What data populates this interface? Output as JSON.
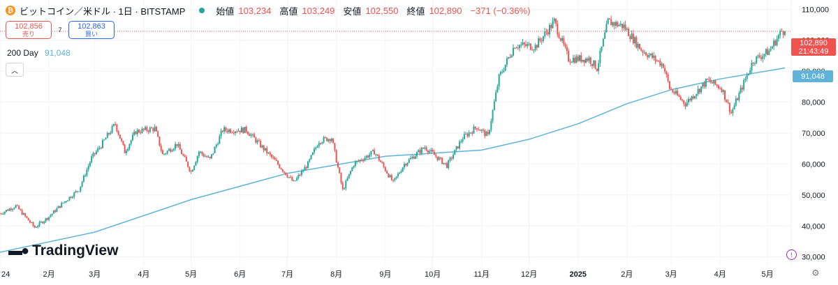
{
  "header": {
    "symbol": "ビットコイン／米ドル · 1日 · BITSTAMP",
    "coin_icon": "bitcoin-icon",
    "open_label": "始値",
    "open": "103,234",
    "high_label": "高値",
    "high": "103,249",
    "low_label": "安値",
    "low": "102,550",
    "close_label": "終値",
    "close": "102,890",
    "change": "−371 (−0.36%)"
  },
  "trade": {
    "sell_price": "102,856",
    "sell_label": "売り",
    "spread": "7",
    "buy_price": "102,863",
    "buy_label": "買い"
  },
  "ma_legend": {
    "label": "200 Day",
    "value": "91,048"
  },
  "branding": {
    "logo_text": "TradingView"
  },
  "price_tag": {
    "price": "102,890",
    "countdown": "21:43:49"
  },
  "ma_tag": {
    "value": "91,048"
  },
  "colors": {
    "up": "#26a69a",
    "down": "#ef5350",
    "ma": "#5fb3d9",
    "grid": "#f0f3fa"
  },
  "chart_data": {
    "type": "candlestick",
    "x_tick_labels": [
      "24",
      "2月",
      "3月",
      "4月",
      "5月",
      "6月",
      "7月",
      "8月",
      "9月",
      "10月",
      "11月",
      "12月",
      "2025",
      "2月",
      "3月",
      "4月",
      "5月"
    ],
    "y_ticks": [
      30000,
      40000,
      50000,
      60000,
      70000,
      80000,
      90000,
      100000,
      110000
    ],
    "y_tick_labels": [
      "30,000",
      "40,000",
      "50,000",
      "60,000",
      "70,000",
      "80,000",
      "90,000",
      "100,000",
      "110,000"
    ],
    "ylim": [
      27000,
      113000
    ],
    "last_price": 102890,
    "ma_last": 91048,
    "price_path": [
      [
        "2024-01-01",
        44000
      ],
      [
        "2024-01-11",
        46500
      ],
      [
        "2024-01-23",
        39500
      ],
      [
        "2024-02-01",
        43000
      ],
      [
        "2024-02-10",
        47500
      ],
      [
        "2024-02-20",
        51800
      ],
      [
        "2024-02-28",
        62000
      ],
      [
        "2024-03-05",
        66000
      ],
      [
        "2024-03-14",
        73000
      ],
      [
        "2024-03-20",
        64000
      ],
      [
        "2024-03-27",
        70500
      ],
      [
        "2024-04-08",
        71500
      ],
      [
        "2024-04-13",
        63000
      ],
      [
        "2024-04-22",
        66500
      ],
      [
        "2024-05-01",
        57500
      ],
      [
        "2024-05-06",
        64000
      ],
      [
        "2024-05-13",
        61500
      ],
      [
        "2024-05-21",
        71000
      ],
      [
        "2024-06-05",
        71000
      ],
      [
        "2024-06-14",
        66000
      ],
      [
        "2024-06-24",
        60500
      ],
      [
        "2024-07-05",
        54000
      ],
      [
        "2024-07-14",
        60000
      ],
      [
        "2024-07-21",
        67500
      ],
      [
        "2024-07-29",
        68500
      ],
      [
        "2024-08-05",
        51500
      ],
      [
        "2024-08-12",
        60000
      ],
      [
        "2024-08-25",
        64000
      ],
      [
        "2024-09-06",
        54000
      ],
      [
        "2024-09-13",
        60000
      ],
      [
        "2024-09-26",
        65500
      ],
      [
        "2024-10-10",
        59500
      ],
      [
        "2024-10-20",
        68500
      ],
      [
        "2024-10-29",
        72000
      ],
      [
        "2024-11-05",
        69000
      ],
      [
        "2024-11-12",
        88000
      ],
      [
        "2024-11-22",
        98500
      ],
      [
        "2024-12-05",
        98000
      ],
      [
        "2024-12-17",
        106000
      ],
      [
        "2024-12-26",
        94000
      ],
      [
        "2025-01-08",
        94000
      ],
      [
        "2025-01-13",
        91000
      ],
      [
        "2025-01-20",
        106000
      ],
      [
        "2025-01-30",
        104500
      ],
      [
        "2025-02-10",
        97000
      ],
      [
        "2025-02-24",
        92000
      ],
      [
        "2025-02-28",
        84500
      ],
      [
        "2025-03-10",
        79500
      ],
      [
        "2025-03-24",
        87000
      ],
      [
        "2025-04-02",
        84500
      ],
      [
        "2025-04-08",
        76500
      ],
      [
        "2025-04-22",
        93500
      ],
      [
        "2025-05-02",
        96500
      ],
      [
        "2025-05-10",
        103000
      ],
      [
        "2025-05-12",
        102890
      ]
    ],
    "ma200_path": [
      [
        "2024-01-01",
        31500
      ],
      [
        "2024-03-01",
        38000
      ],
      [
        "2024-05-01",
        48500
      ],
      [
        "2024-07-01",
        57000
      ],
      [
        "2024-09-01",
        62500
      ],
      [
        "2024-11-01",
        64500
      ],
      [
        "2024-12-01",
        68000
      ],
      [
        "2025-01-01",
        73000
      ],
      [
        "2025-02-01",
        79500
      ],
      [
        "2025-03-01",
        84000
      ],
      [
        "2025-04-01",
        87500
      ],
      [
        "2025-05-12",
        91048
      ]
    ]
  }
}
